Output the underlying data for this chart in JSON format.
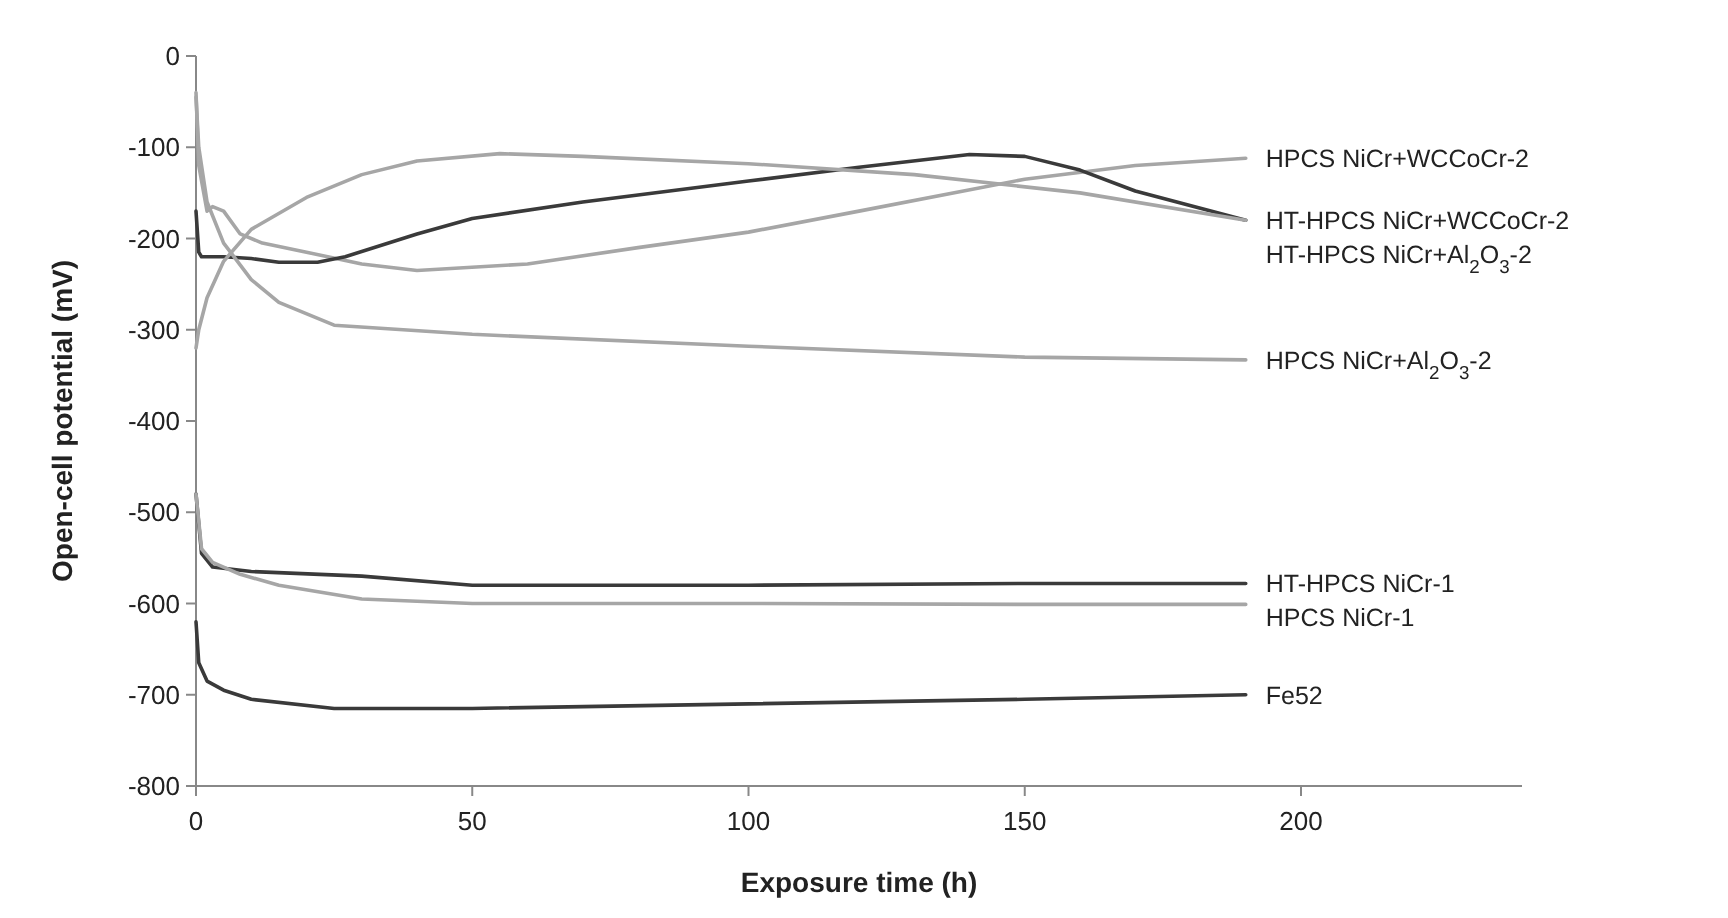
{
  "chart_data": {
    "type": "line",
    "xlabel": "Exposure time (h)",
    "ylabel": "Open-cell potential (mV)",
    "xlim": [
      0,
      240
    ],
    "xticks": [
      0,
      50,
      100,
      150,
      200
    ],
    "ylim": [
      -800,
      0
    ],
    "yticks": [
      -800,
      -700,
      -600,
      -500,
      -400,
      -300,
      -200,
      -100,
      0
    ],
    "grid": false,
    "marker": "none",
    "line_style": "solid",
    "series": [
      {
        "name": "HPCS NiCr+WCCoCr-2",
        "color": "#a6a6a6",
        "x": [
          0,
          0.5,
          2,
          3,
          5,
          8,
          12,
          20,
          30,
          40,
          60,
          80,
          100,
          120,
          150,
          170,
          190
        ],
        "values": [
          -40,
          -120,
          -170,
          -165,
          -170,
          -195,
          -205,
          -215,
          -228,
          -235,
          -228,
          -210,
          -193,
          -170,
          -135,
          -120,
          -112
        ]
      },
      {
        "name": "HT-HPCS NiCr+WCCoCr-2",
        "color": "#3a3a3a",
        "x": [
          0,
          0.5,
          1,
          5,
          10,
          15,
          22,
          27,
          40,
          50,
          70,
          100,
          120,
          140,
          150,
          160,
          170,
          190
        ],
        "values": [
          -170,
          -215,
          -220,
          -220,
          -222,
          -226,
          -226,
          -220,
          -195,
          -178,
          -160,
          -137,
          -122,
          -108,
          -110,
          -125,
          -148,
          -180
        ]
      },
      {
        "name": "HT-HPCS NiCr+Al$_{2}$O$_{3}$-2",
        "color": "#a6a6a6",
        "x": [
          0,
          0.5,
          2,
          5,
          10,
          20,
          30,
          40,
          55,
          70,
          100,
          130,
          160,
          190
        ],
        "values": [
          -320,
          -300,
          -265,
          -225,
          -190,
          -155,
          -130,
          -115,
          -107,
          -110,
          -118,
          -130,
          -150,
          -180
        ]
      },
      {
        "name": "HPCS NiCr+Al$_{2}$O$_{3}$-2",
        "color": "#a6a6a6",
        "x": [
          0,
          0.5,
          2,
          5,
          10,
          15,
          25,
          50,
          100,
          150,
          190
        ],
        "values": [
          -45,
          -100,
          -160,
          -205,
          -245,
          -270,
          -295,
          -305,
          -318,
          -330,
          -333
        ]
      },
      {
        "name": "HT-HPCS NiCr-1",
        "color": "#3a3a3a",
        "x": [
          0,
          1,
          3,
          10,
          30,
          50,
          100,
          150,
          190
        ],
        "values": [
          -480,
          -545,
          -560,
          -565,
          -570,
          -580,
          -580,
          -578,
          -578
        ]
      },
      {
        "name": "HPCS NiCr-1",
        "color": "#a6a6a6",
        "x": [
          0,
          1,
          3,
          8,
          15,
          30,
          50,
          100,
          150,
          190
        ],
        "values": [
          -480,
          -540,
          -555,
          -568,
          -580,
          -595,
          -600,
          -600,
          -601,
          -601
        ]
      },
      {
        "name": "Fe52",
        "color": "#3a3a3a",
        "x": [
          0,
          0.5,
          2,
          5,
          10,
          25,
          50,
          100,
          150,
          190
        ],
        "values": [
          -620,
          -665,
          -685,
          -695,
          -705,
          -715,
          -715,
          -710,
          -705,
          -700
        ]
      }
    ]
  }
}
